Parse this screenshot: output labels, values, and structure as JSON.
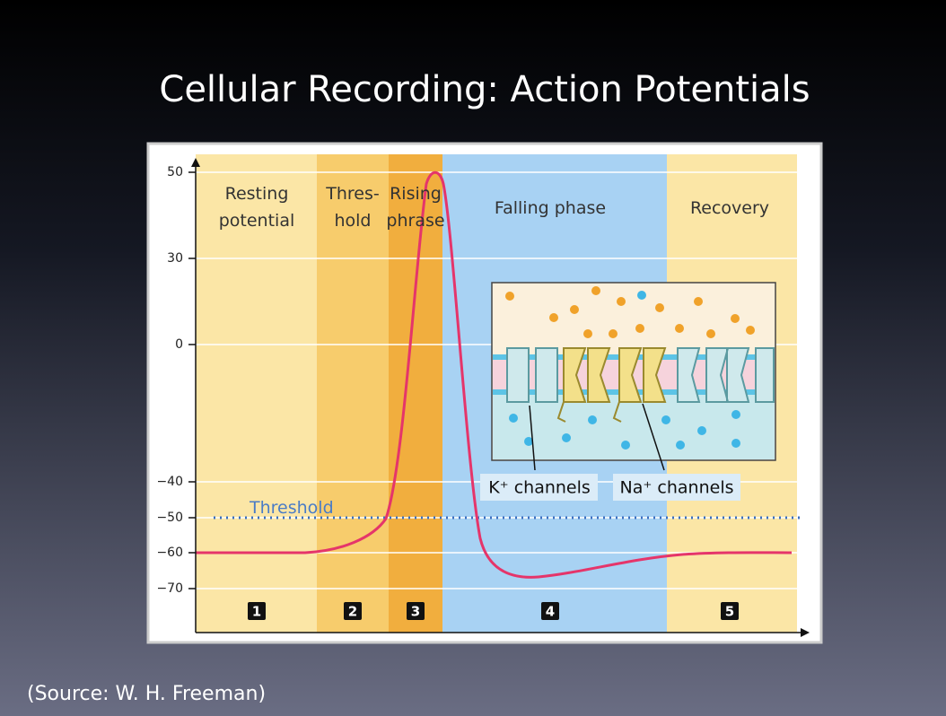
{
  "slide": {
    "title": "Cellular Recording: Action Potentials",
    "source": "(Source: W. H. Freeman)",
    "figure": {
      "y_ticks": [
        "50",
        "30",
        "0",
        "−40",
        "−50",
        "−60",
        "−70"
      ],
      "threshold_label": "Threshold",
      "phases": [
        {
          "lines": [
            "Resting",
            "potential"
          ],
          "number": "1"
        },
        {
          "lines": [
            "Thres-",
            "hold"
          ],
          "number": "2"
        },
        {
          "lines": [
            "Rising",
            "phrase"
          ],
          "number": "3"
        },
        {
          "lines": [
            "Falling phase"
          ],
          "number": "4"
        },
        {
          "lines": [
            "Recovery"
          ],
          "number": "5"
        }
      ],
      "channel_labels": [
        "K⁺ channels",
        "Na⁺ channels"
      ]
    }
  }
}
